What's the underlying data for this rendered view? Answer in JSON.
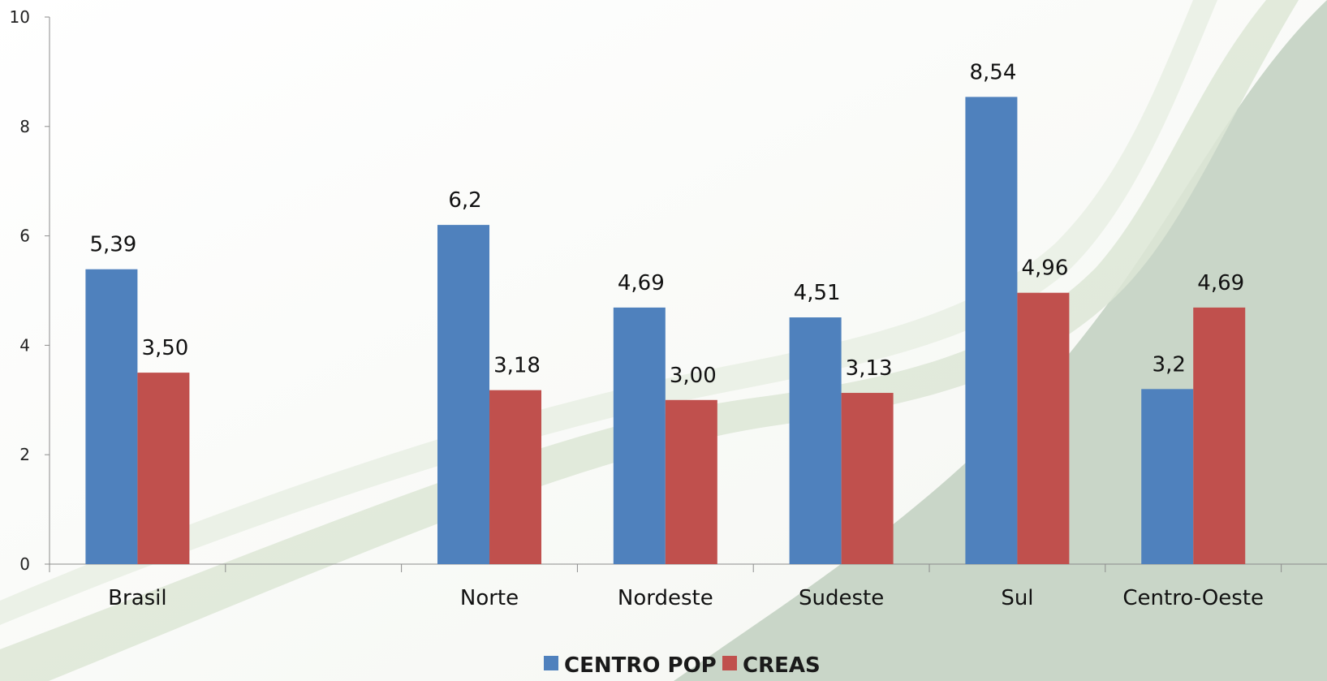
{
  "chart_data": {
    "type": "bar",
    "categories": [
      "Brasil",
      "",
      "Norte",
      "Nordeste",
      "Sudeste",
      "Sul",
      "Centro-Oeste"
    ],
    "series": [
      {
        "name": "CENTRO POP",
        "color": "#4f81bd",
        "values": [
          5.39,
          null,
          6.2,
          4.69,
          4.51,
          8.54,
          3.2
        ],
        "labels": [
          "5,39",
          "",
          "6,2",
          "4,69",
          "4,51",
          "8,54",
          "3,2"
        ]
      },
      {
        "name": "CREAS",
        "color": "#c0504d",
        "values": [
          3.5,
          null,
          3.18,
          3.0,
          3.13,
          4.96,
          4.69
        ],
        "labels": [
          "3,50",
          "",
          "3,18",
          "3,00",
          "3,13",
          "4,96",
          "4,69"
        ]
      }
    ],
    "yticks": [
      0,
      2,
      4,
      6,
      8,
      10
    ],
    "ylim": [
      0,
      10
    ],
    "title": "",
    "xlabel": "",
    "ylabel": "",
    "grid": false,
    "legend": "bottom-center"
  }
}
